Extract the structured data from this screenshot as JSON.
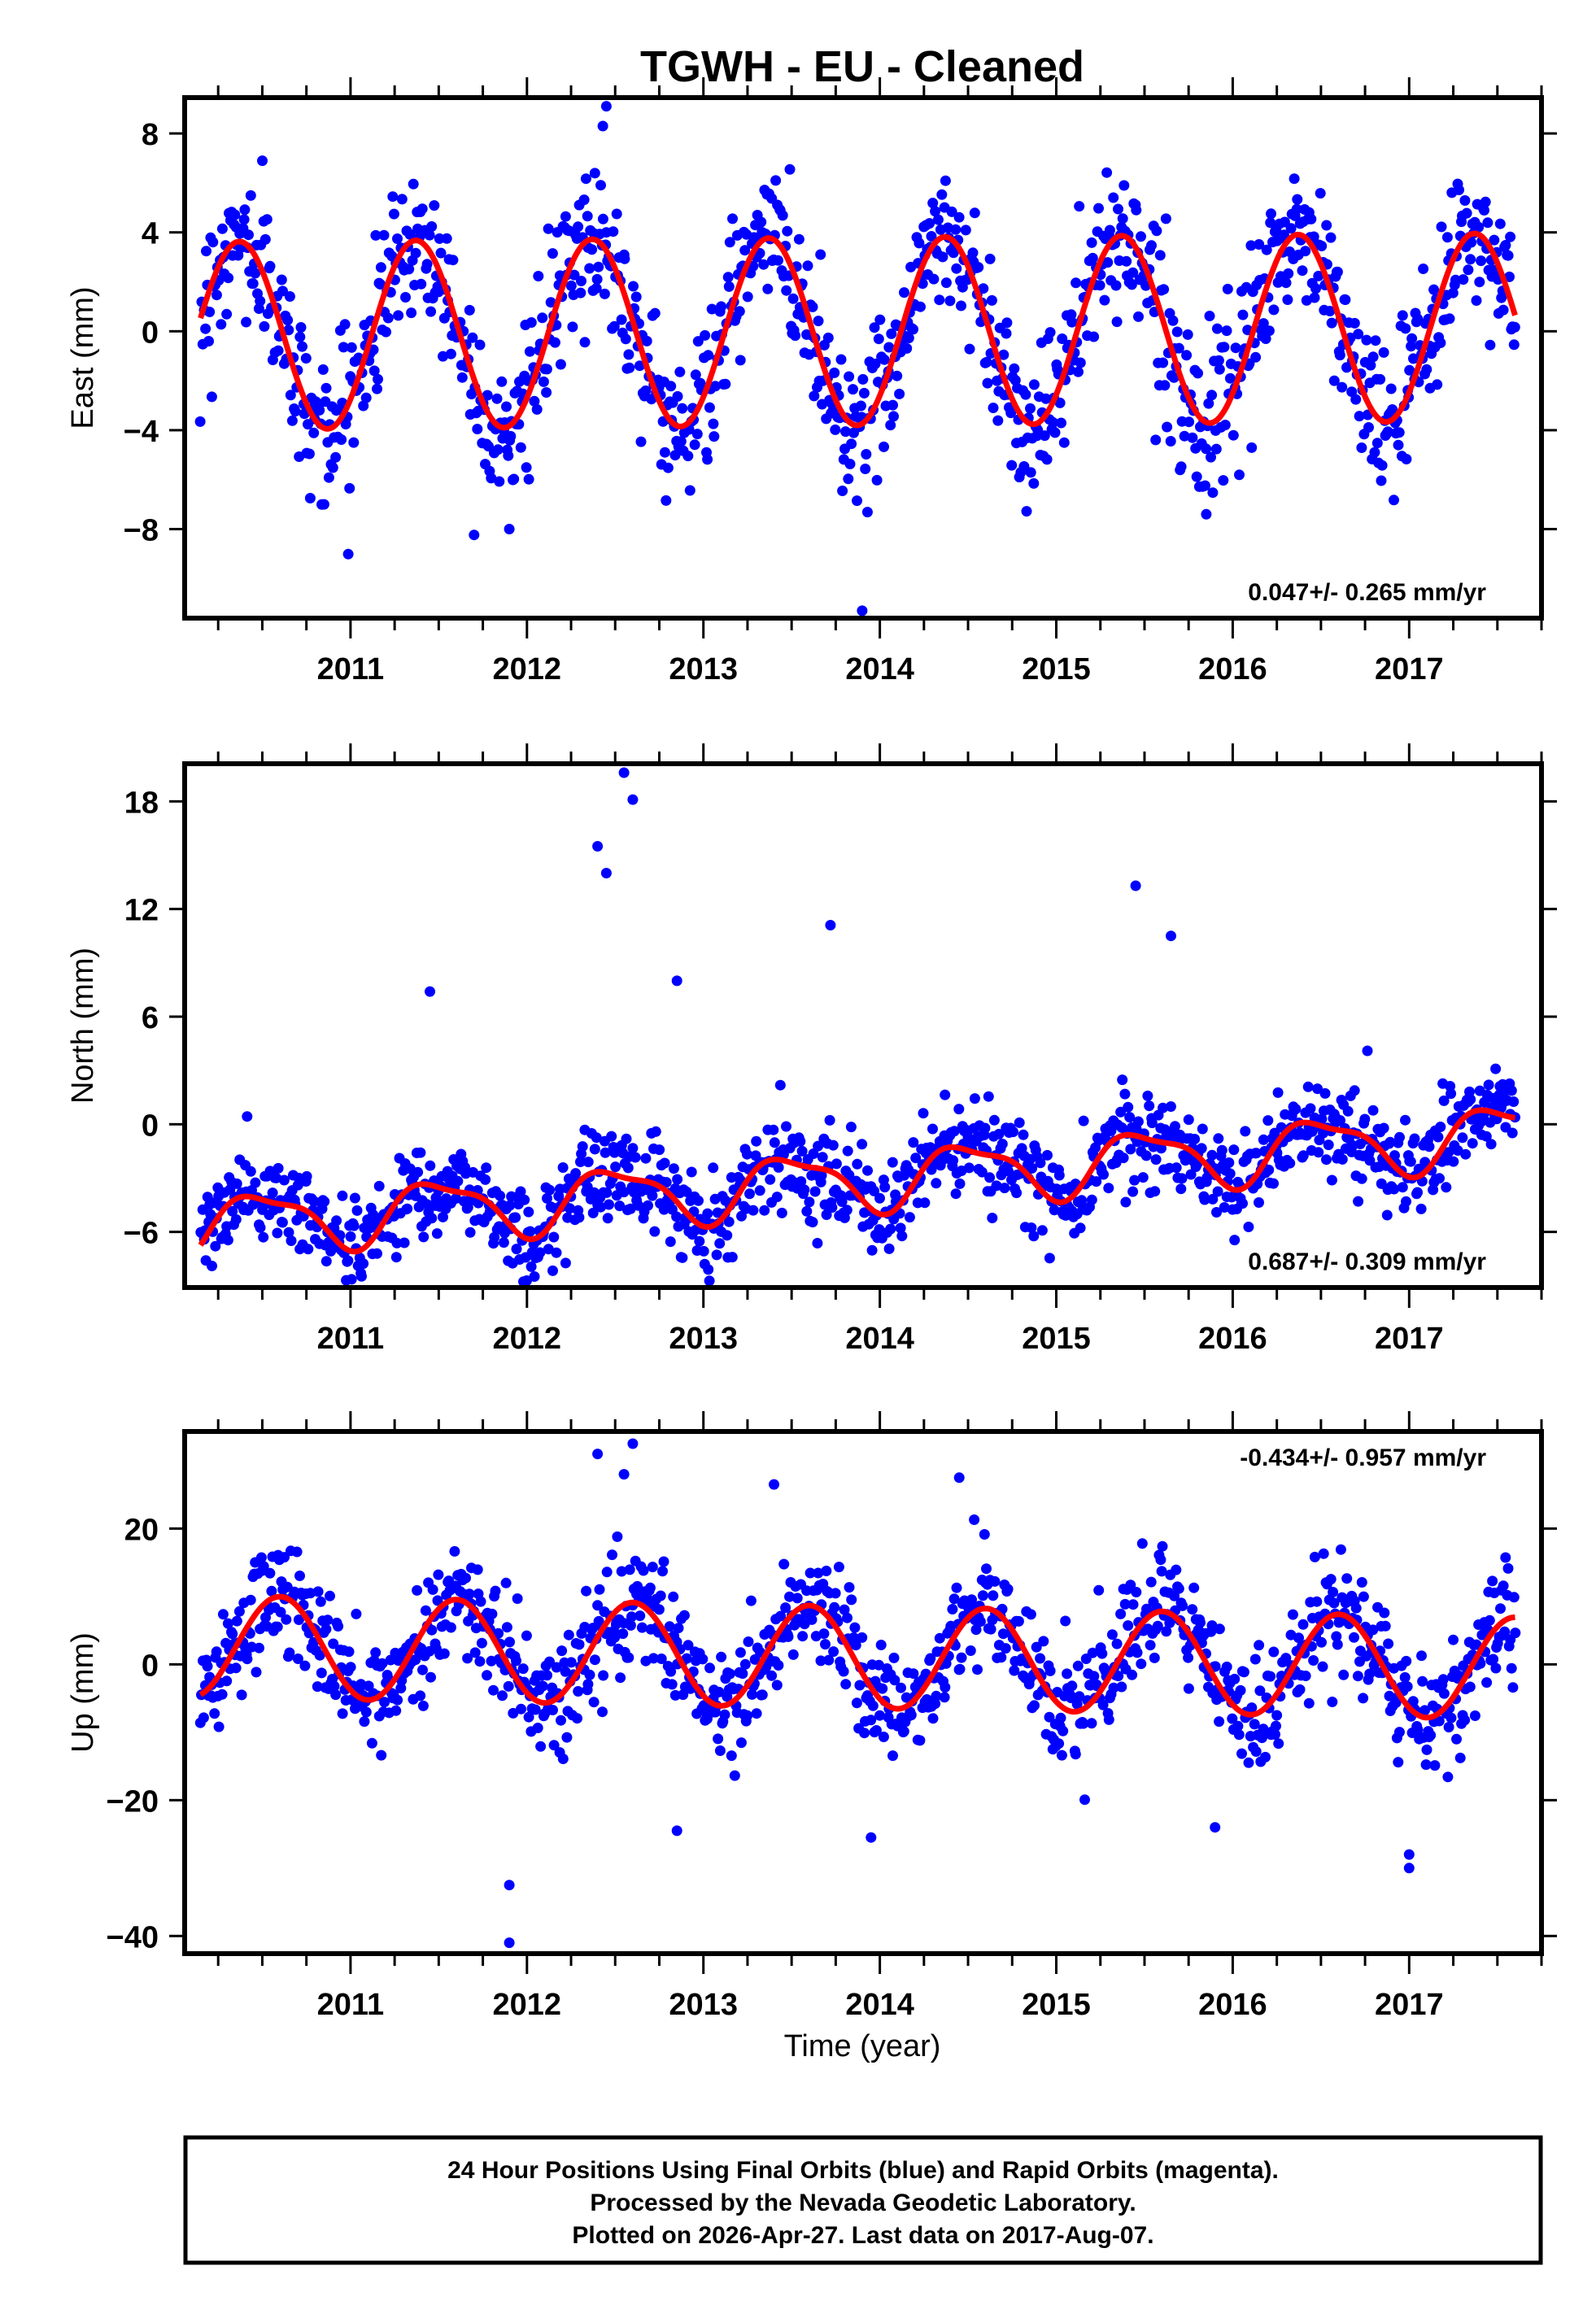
{
  "chart_data": {
    "type": "scatter",
    "title": "TGWH  - EU - Cleaned",
    "xlabel": "Time (year)",
    "xlim": [
      2010.06,
      2017.75
    ],
    "x_ticks": [
      2011,
      2012,
      2013,
      2014,
      2015,
      2016,
      2017
    ],
    "x_tick_labels": [
      "2011",
      "2012",
      "2013",
      "2014",
      "2015",
      "2016",
      "2017"
    ],
    "x_minor_tick_step": 0.25,
    "data_start": 2010.15,
    "data_end": 2017.6,
    "point_color": "#0000ff",
    "fit_color": "#ff0000",
    "panels": [
      {
        "id": "east",
        "ylabel": "East (mm)",
        "ylim": [
          -11.6,
          9.45
        ],
        "y_ticks": [
          8,
          4,
          0,
          -4,
          -8
        ],
        "y_tick_labels": [
          "8",
          "4",
          "0",
          "−4",
          "−8"
        ],
        "rate_text": "0.047+/- 0.265 mm/yr",
        "rate_position": "bottom-right",
        "model": {
          "offset": 0.0,
          "rate": 0.047,
          "annual_amp": 3.8,
          "annual_peak_phase": 0.37,
          "semiannual_amp": 0.0,
          "semiannual_phase": 0.0,
          "noise_sd": 1.5
        },
        "outliers": [
          [
            2012.45,
            9.1
          ],
          [
            2012.43,
            8.3
          ],
          [
            2013.9,
            -11.3
          ],
          [
            2011.9,
            -8.0
          ],
          [
            2015.85,
            -7.4
          ]
        ]
      },
      {
        "id": "north",
        "ylabel": "North (mm)",
        "ylim": [
          -9.1,
          20.1
        ],
        "y_ticks": [
          18,
          12,
          6,
          0,
          -6
        ],
        "y_tick_labels": [
          "18",
          "12",
          "6",
          "0",
          "−6"
        ],
        "rate_text": "0.687+/- 0.309 mm/yr",
        "rate_position": "bottom-right",
        "model": {
          "offset": -3.0,
          "rate": 0.687,
          "annual_amp": 1.6,
          "annual_peak_phase": 0.5,
          "semiannual_amp": 0.5,
          "semiannual_phase": 0.3,
          "noise_sd": 1.3
        },
        "outliers": [
          [
            2012.55,
            19.6
          ],
          [
            2012.6,
            18.1
          ],
          [
            2012.4,
            15.5
          ],
          [
            2012.45,
            14.0
          ],
          [
            2015.45,
            13.3
          ],
          [
            2013.72,
            11.1
          ],
          [
            2015.65,
            10.5
          ],
          [
            2012.85,
            8.0
          ],
          [
            2011.45,
            7.4
          ]
        ]
      },
      {
        "id": "up",
        "ylabel": "Up (mm)",
        "ylim": [
          -42.6,
          34.3
        ],
        "y_ticks": [
          20,
          0,
          -20,
          -40
        ],
        "y_tick_labels": [
          "20",
          "0",
          "−20",
          "−40"
        ],
        "rate_text": "-0.434+/- 0.957 mm/yr",
        "rate_position": "top-right",
        "model": {
          "offset": 1.0,
          "rate": -0.434,
          "annual_amp": 7.5,
          "annual_peak_phase": 0.6,
          "semiannual_amp": 0.0,
          "semiannual_phase": 0.0,
          "noise_sd": 4.2
        },
        "outliers": [
          [
            2012.6,
            32.5
          ],
          [
            2012.4,
            31.0
          ],
          [
            2012.55,
            28.0
          ],
          [
            2014.45,
            27.5
          ],
          [
            2013.4,
            26.5
          ],
          [
            2011.9,
            -32.5
          ],
          [
            2011.9,
            -41.0
          ],
          [
            2013.95,
            -25.5
          ],
          [
            2012.85,
            -24.5
          ],
          [
            2015.9,
            -24.0
          ],
          [
            2017.0,
            -30.0
          ],
          [
            2017.0,
            -28.0
          ]
        ]
      }
    ]
  },
  "footer": {
    "lines": [
      "24 Hour Positions Using Final Orbits (blue) and Rapid Orbits (magenta).",
      "Processed by the Nevada Geodetic Laboratory.",
      "Plotted on 2026-Apr-27. Last data on 2017-Aug-07."
    ]
  }
}
